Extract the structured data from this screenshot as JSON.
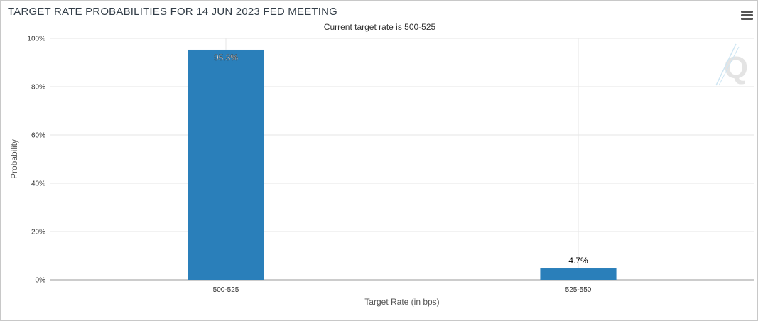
{
  "title": "TARGET RATE PROBABILITIES FOR 14 JUN 2023 FED MEETING",
  "subtitle": "Current target rate is 500-525",
  "menu_icon": "hamburger-menu-icon",
  "watermark_icon": "q-logo-icon",
  "chart_data": {
    "type": "bar",
    "categories": [
      "500-525",
      "525-550"
    ],
    "values": [
      95.3,
      4.7
    ],
    "data_labels": [
      "95.3%",
      "4.7%"
    ],
    "xlabel": "Target Rate (in bps)",
    "ylabel": "Probability",
    "ylim": [
      0,
      100
    ],
    "yticks": [
      "0%",
      "20%",
      "40%",
      "60%",
      "80%",
      "100%"
    ],
    "bar_color": "#2a7fba",
    "grid": true
  }
}
